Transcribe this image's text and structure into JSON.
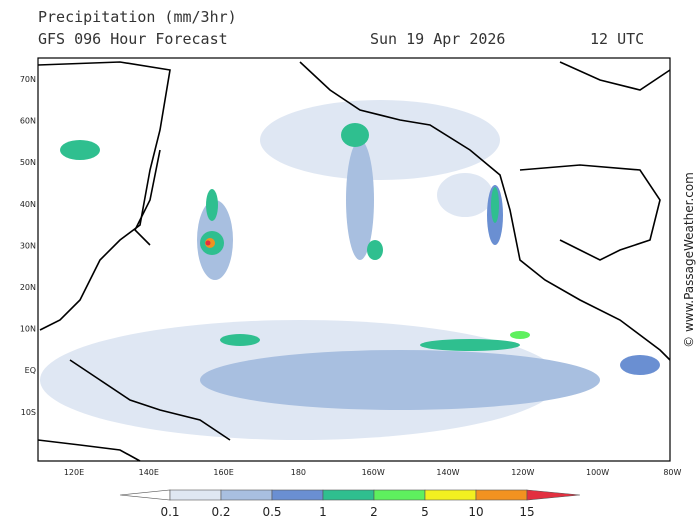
{
  "header": {
    "title": "Precipitation (mm/3hr)",
    "subtitle": "GFS 096 Hour Forecast",
    "valid_date": "Sun 19 Apr 2026",
    "valid_time": "12 UTC"
  },
  "map": {
    "lat_labels": [
      "70N",
      "60N",
      "50N",
      "40N",
      "30N",
      "20N",
      "10N",
      "EQ",
      "10S"
    ],
    "lon_labels": [
      "120E",
      "140E",
      "160E",
      "180",
      "160W",
      "140W",
      "120W",
      "100W",
      "80W"
    ]
  },
  "legend": {
    "labels": [
      "0.1",
      "0.2",
      "0.5",
      "1",
      "2",
      "5",
      "10",
      "15"
    ],
    "colors": [
      "#ffffff",
      "#dfe7f3",
      "#a8bfe0",
      "#6a8fd2",
      "#2fbf8f",
      "#5ef05e",
      "#f2f020",
      "#f29220",
      "#e23040"
    ]
  },
  "credit": "© www.PassageWeather.com"
}
